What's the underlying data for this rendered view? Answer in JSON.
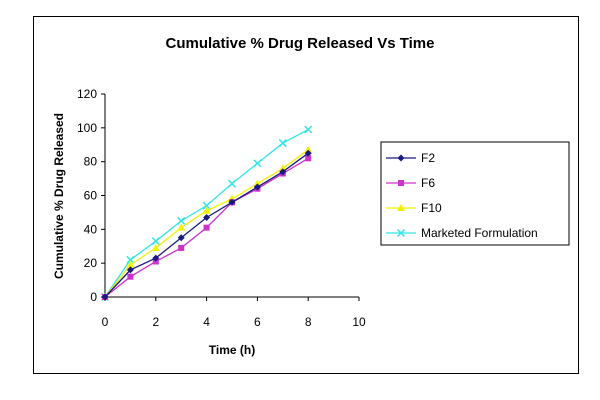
{
  "chart_data": {
    "type": "line",
    "title": "Cumulative % Drug Released Vs Time",
    "xlabel": "Time (h)",
    "ylabel": "Cumulative % Drug Released",
    "xlim": [
      0,
      10
    ],
    "ylim": [
      0,
      120
    ],
    "xticks": [
      "0",
      "2",
      "4",
      "6",
      "8",
      "10"
    ],
    "yticks": [
      "0",
      "20",
      "40",
      "60",
      "80",
      "100",
      "120"
    ],
    "grid": false,
    "legend_position": "right",
    "x": [
      0,
      1,
      2,
      3,
      4,
      5,
      6,
      7,
      8
    ],
    "series": [
      {
        "name": "F2",
        "color": "#1a1a80",
        "marker": "diamond",
        "values": [
          0,
          16,
          23,
          35,
          47,
          56,
          65,
          74,
          85
        ]
      },
      {
        "name": "F6",
        "color": "#cc33cc",
        "marker": "square",
        "values": [
          0,
          12,
          21,
          29,
          41,
          56,
          64,
          73,
          82
        ]
      },
      {
        "name": "F10",
        "color": "#f2f200",
        "marker": "triangle",
        "values": [
          0,
          19,
          29,
          41,
          51,
          58,
          67,
          76,
          87
        ]
      },
      {
        "name": "Marketed Formulation",
        "color": "#33e6e6",
        "marker": "x",
        "values": [
          0,
          22,
          33,
          45,
          54,
          67,
          79,
          91,
          99
        ]
      }
    ]
  }
}
